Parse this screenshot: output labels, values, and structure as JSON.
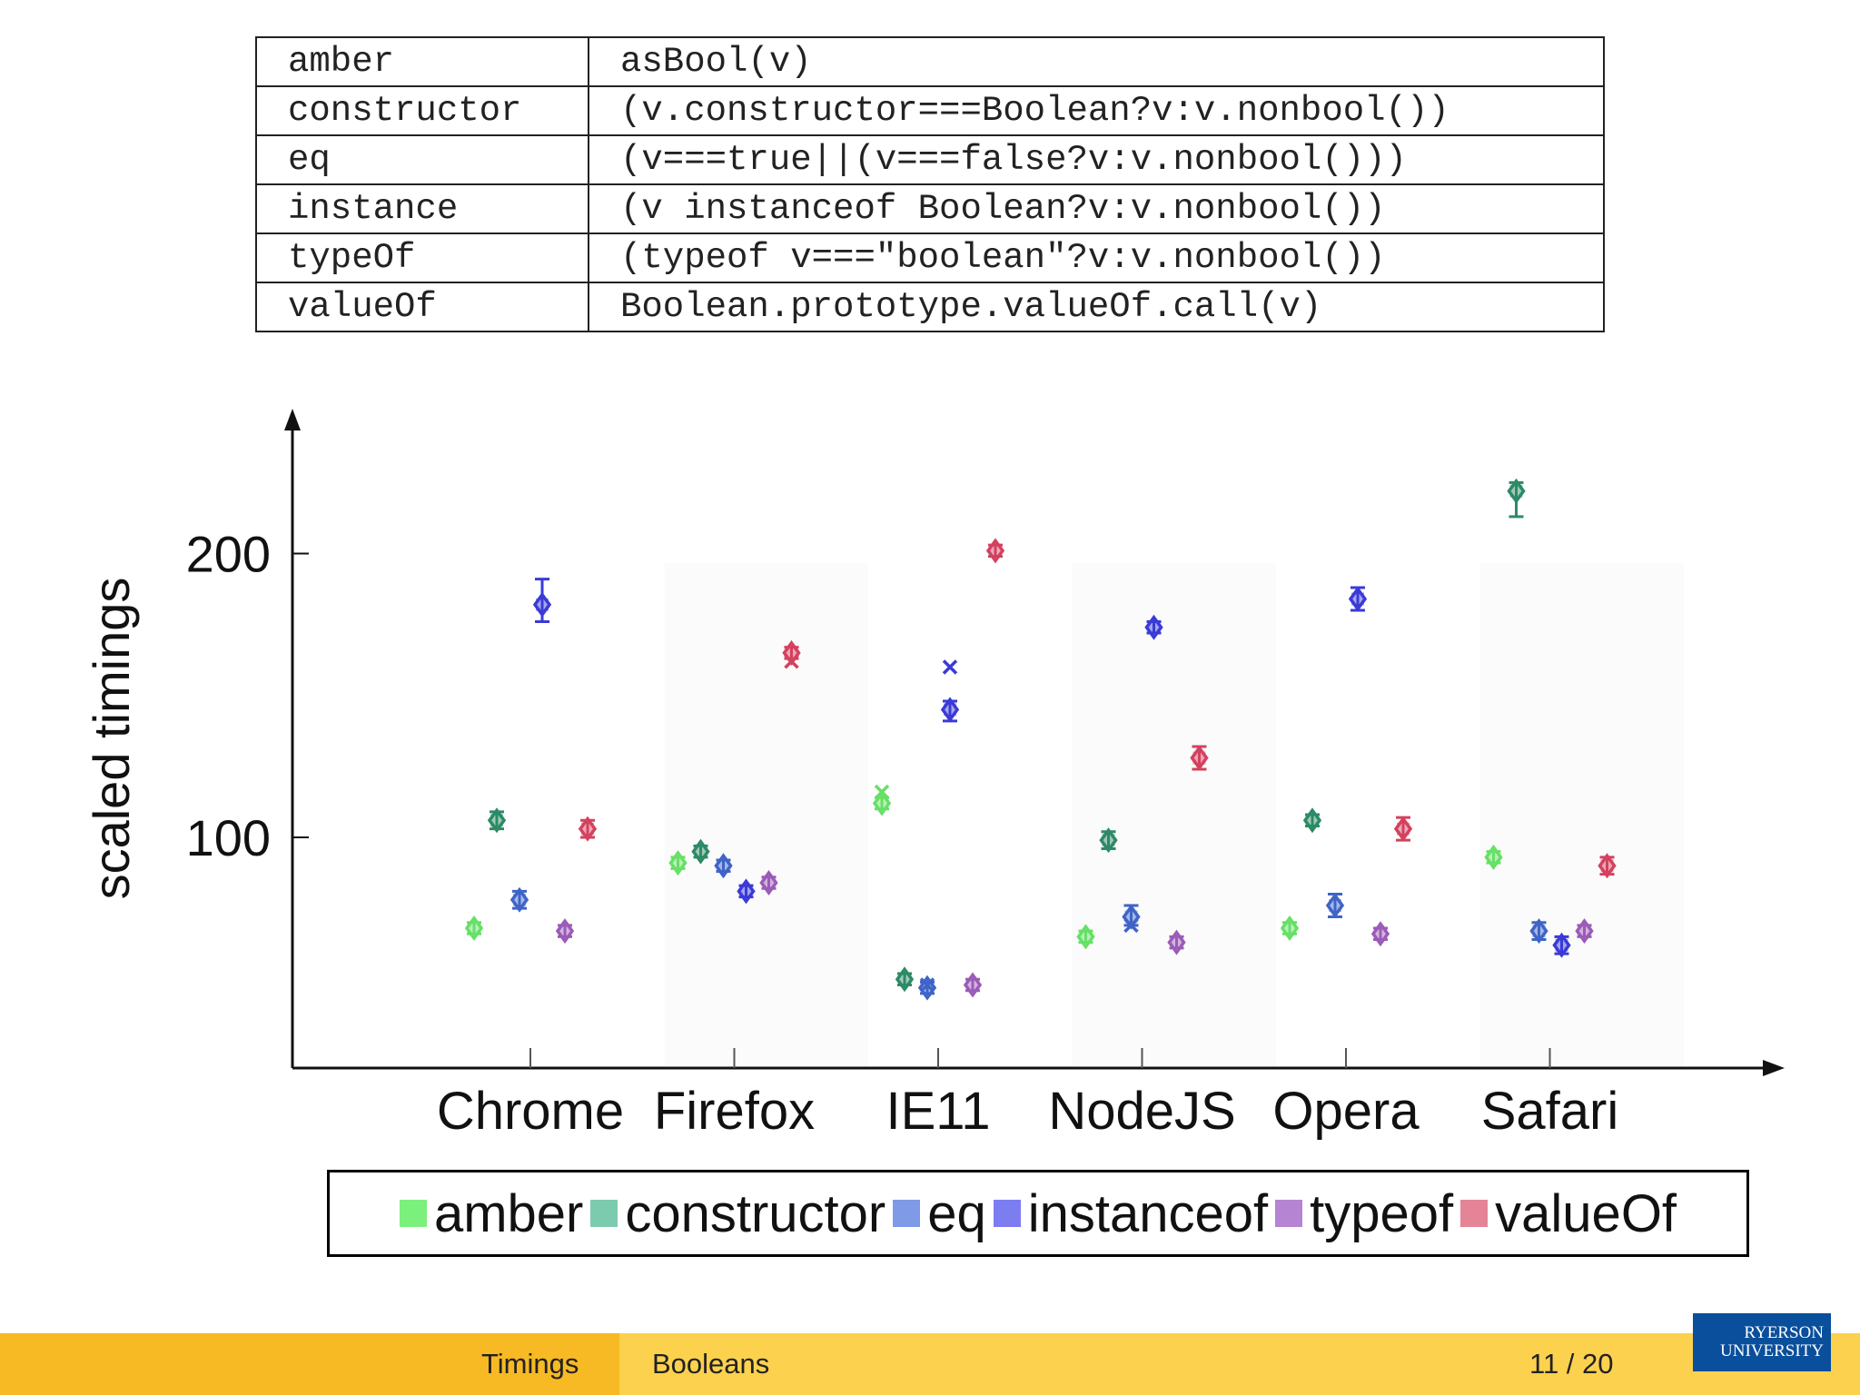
{
  "code_table": [
    {
      "key": "amber",
      "code": "asBool(v)"
    },
    {
      "key": "constructor",
      "code": "(v.constructor===Boolean?v:v.nonbool())"
    },
    {
      "key": "eq",
      "code": "(v===true||(v===false?v:v.nonbool()))"
    },
    {
      "key": "instance",
      "code": "(v instanceof Boolean?v:v.nonbool())"
    },
    {
      "key": "typeOf",
      "code": "(typeof v===\"boolean\"?v:v.nonbool())"
    },
    {
      "key": "valueOf",
      "code": "Boolean.prototype.valueOf.call(v)"
    }
  ],
  "chart_data": {
    "type": "scatter",
    "ylabel": "scaled timings",
    "xlabel": "",
    "yticks": [
      100,
      200
    ],
    "ylim": [
      20,
      255
    ],
    "categories": [
      "Chrome",
      "Firefox",
      "IE11",
      "NodeJS",
      "Opera",
      "Safari"
    ],
    "legend_position": "bottom",
    "series": [
      {
        "name": "amber",
        "color": "#66e066",
        "values": [
          68,
          91,
          112,
          65,
          68,
          93
        ],
        "err_lo": [
          2,
          2,
          2,
          2,
          2,
          2
        ],
        "err_hi": [
          2,
          2,
          2,
          2,
          2,
          2
        ],
        "cross": [
          null,
          null,
          116,
          null,
          null,
          null
        ]
      },
      {
        "name": "constructor",
        "color": "#2d8a66",
        "values": [
          106,
          95,
          50,
          99,
          106,
          222
        ],
        "err_lo": [
          3,
          2,
          2,
          3,
          2,
          9
        ],
        "err_hi": [
          3,
          2,
          2,
          3,
          2,
          3
        ],
        "cross": [
          null,
          null,
          null,
          null,
          null,
          null
        ]
      },
      {
        "name": "eq",
        "color": "#3f64c8",
        "values": [
          78,
          90,
          47,
          72,
          76,
          67
        ],
        "err_lo": [
          3,
          2,
          2,
          3,
          4,
          3
        ],
        "err_hi": [
          3,
          2,
          2,
          4,
          4,
          3
        ],
        "cross": [
          null,
          null,
          48,
          69,
          null,
          null
        ]
      },
      {
        "name": "instanceof",
        "color": "#3a3ad8",
        "values": [
          182,
          81,
          145,
          174,
          184,
          62
        ],
        "err_lo": [
          6,
          2,
          4,
          2,
          4,
          3
        ],
        "err_hi": [
          9,
          2,
          3,
          2,
          4,
          3
        ],
        "cross": [
          null,
          null,
          160,
          null,
          null,
          null
        ]
      },
      {
        "name": "typeof",
        "color": "#9b5bb8",
        "values": [
          67,
          84,
          48,
          63,
          66,
          67
        ],
        "err_lo": [
          2,
          2,
          2,
          2,
          2,
          2
        ],
        "err_hi": [
          2,
          2,
          2,
          2,
          2,
          2
        ],
        "cross": [
          null,
          null,
          null,
          null,
          null,
          null
        ]
      },
      {
        "name": "valueOf",
        "color": "#d4415f",
        "values": [
          103,
          165,
          201,
          128,
          103,
          90
        ],
        "err_lo": [
          3,
          2,
          2,
          4,
          4,
          3
        ],
        "err_hi": [
          3,
          2,
          2,
          4,
          4,
          3
        ],
        "cross": [
          null,
          162,
          null,
          null,
          null,
          null
        ]
      }
    ]
  },
  "legend": [
    {
      "label": "amber",
      "color": "#7cf07c"
    },
    {
      "label": "constructor",
      "color": "#7ccbae"
    },
    {
      "label": "eq",
      "color": "#7f9ae6"
    },
    {
      "label": "instanceof",
      "color": "#7d7df2"
    },
    {
      "label": "typeof",
      "color": "#b584d2"
    },
    {
      "label": "valueOf",
      "color": "#e48496"
    }
  ],
  "footer": {
    "section": "Timings",
    "subsection": "Booleans",
    "page": "11 / 20",
    "logo_line1": "RYERSON",
    "logo_line2": "UNIVERSITY"
  }
}
